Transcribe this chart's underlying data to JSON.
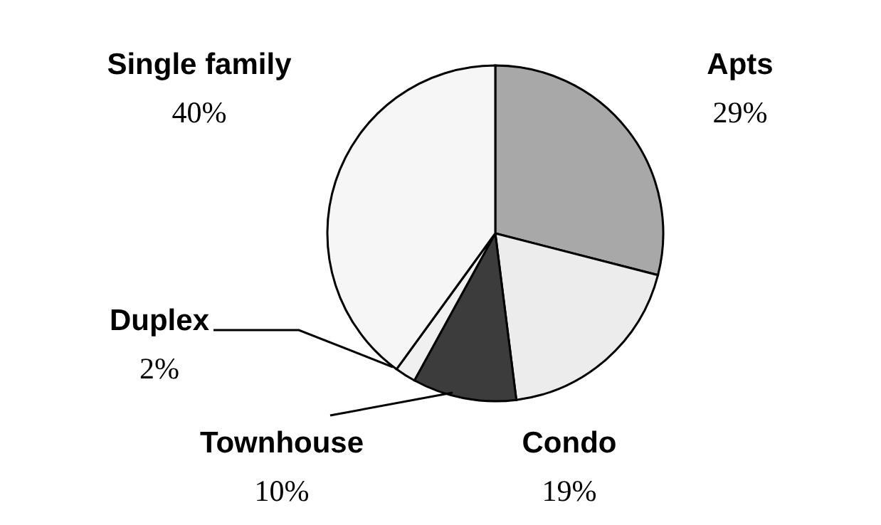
{
  "chart_data": {
    "type": "pie",
    "categories": [
      "Apts",
      "Condo",
      "Townhouse",
      "Duplex",
      "Single family"
    ],
    "values": [
      29,
      19,
      10,
      2,
      40
    ],
    "value_labels": [
      "29%",
      "19%",
      "10%",
      "2%",
      "40%"
    ],
    "colors": [
      "#a8a8a8",
      "#ececec",
      "#3c3c3c",
      "#f0f0f0",
      "#f6f6f6"
    ]
  }
}
